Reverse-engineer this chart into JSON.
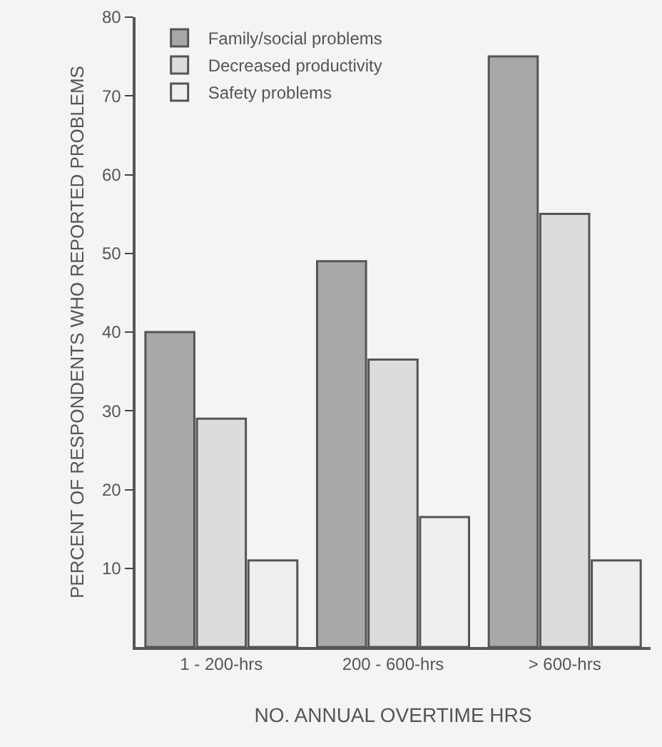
{
  "chart_data": {
    "type": "bar",
    "xlabel": "NO. ANNUAL OVERTIME HRS",
    "ylabel": "PERCENT OF RESPONDENTS WHO REPORTED PROBLEMS",
    "categories": [
      "1 - 200-hrs",
      "200 - 600-hrs",
      "> 600-hrs"
    ],
    "series": [
      {
        "name": "Family/social problems",
        "color": "#a8a8a8",
        "values": [
          40,
          49,
          75
        ]
      },
      {
        "name": "Decreased productivity",
        "color": "#dcdcdc",
        "values": [
          29,
          36.5,
          55
        ]
      },
      {
        "name": "Safety problems",
        "color": "#efefef",
        "values": [
          11,
          16.5,
          11
        ]
      }
    ],
    "ylim": [
      0,
      80
    ],
    "yticks": [
      10,
      20,
      30,
      40,
      50,
      60,
      70,
      80
    ],
    "grid": false,
    "legend": "top left"
  }
}
